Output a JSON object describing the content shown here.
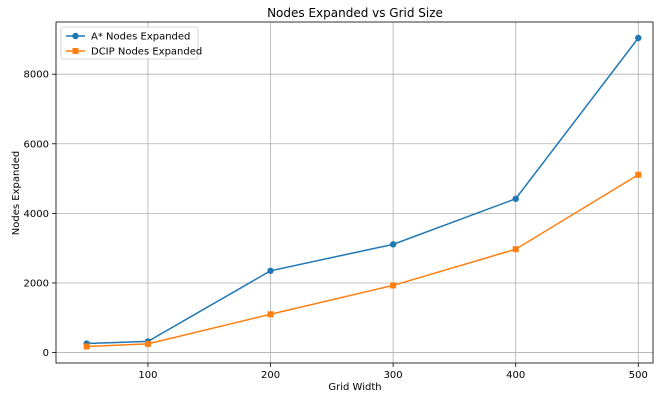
{
  "chart_data": {
    "type": "line",
    "title": "Nodes Expanded vs Grid Size",
    "xlabel": "Grid Width",
    "ylabel": "Nodes Expanded",
    "x": [
      50,
      100,
      200,
      300,
      400,
      500
    ],
    "xlim": [
      25,
      512
    ],
    "ylim": [
      -300,
      9500
    ],
    "xticks": [
      100,
      200,
      300,
      400,
      500
    ],
    "yticks": [
      0,
      2000,
      4000,
      6000,
      8000
    ],
    "grid": true,
    "legend": "top-left",
    "series": [
      {
        "name": "A* Nodes Expanded",
        "color": "#1f77b4",
        "marker": "circle",
        "values": [
          260,
          320,
          2350,
          3110,
          4420,
          9040
        ]
      },
      {
        "name": "DCIP Nodes Expanded",
        "color": "#ff7f0e",
        "marker": "square",
        "values": [
          175,
          250,
          1100,
          1930,
          2970,
          5110
        ]
      }
    ]
  }
}
